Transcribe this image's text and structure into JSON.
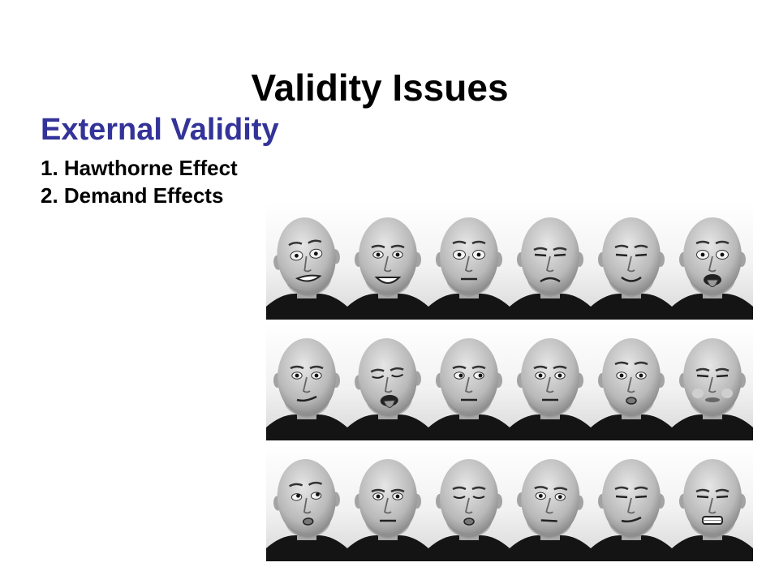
{
  "slide": {
    "title": "Validity Issues",
    "subtitle": "External Validity",
    "subtitle_color": "#333399",
    "items": [
      "1. Hawthorne Effect",
      "2. Demand Effects"
    ]
  },
  "photo": {
    "rows": 3,
    "cols": 6,
    "expressions": [
      [
        "grimace",
        "big-grin",
        "wide-eyed",
        "frown",
        "smile",
        "tongue-out"
      ],
      [
        "smirk",
        "laugh-tongue",
        "side-eye",
        "neutral",
        "pout-lips",
        "puffed-cheeks"
      ],
      [
        "look-up",
        "stern",
        "eyes-closed-pout",
        "neutral-tilt",
        "wry-smile",
        "squint-teeth"
      ]
    ]
  }
}
